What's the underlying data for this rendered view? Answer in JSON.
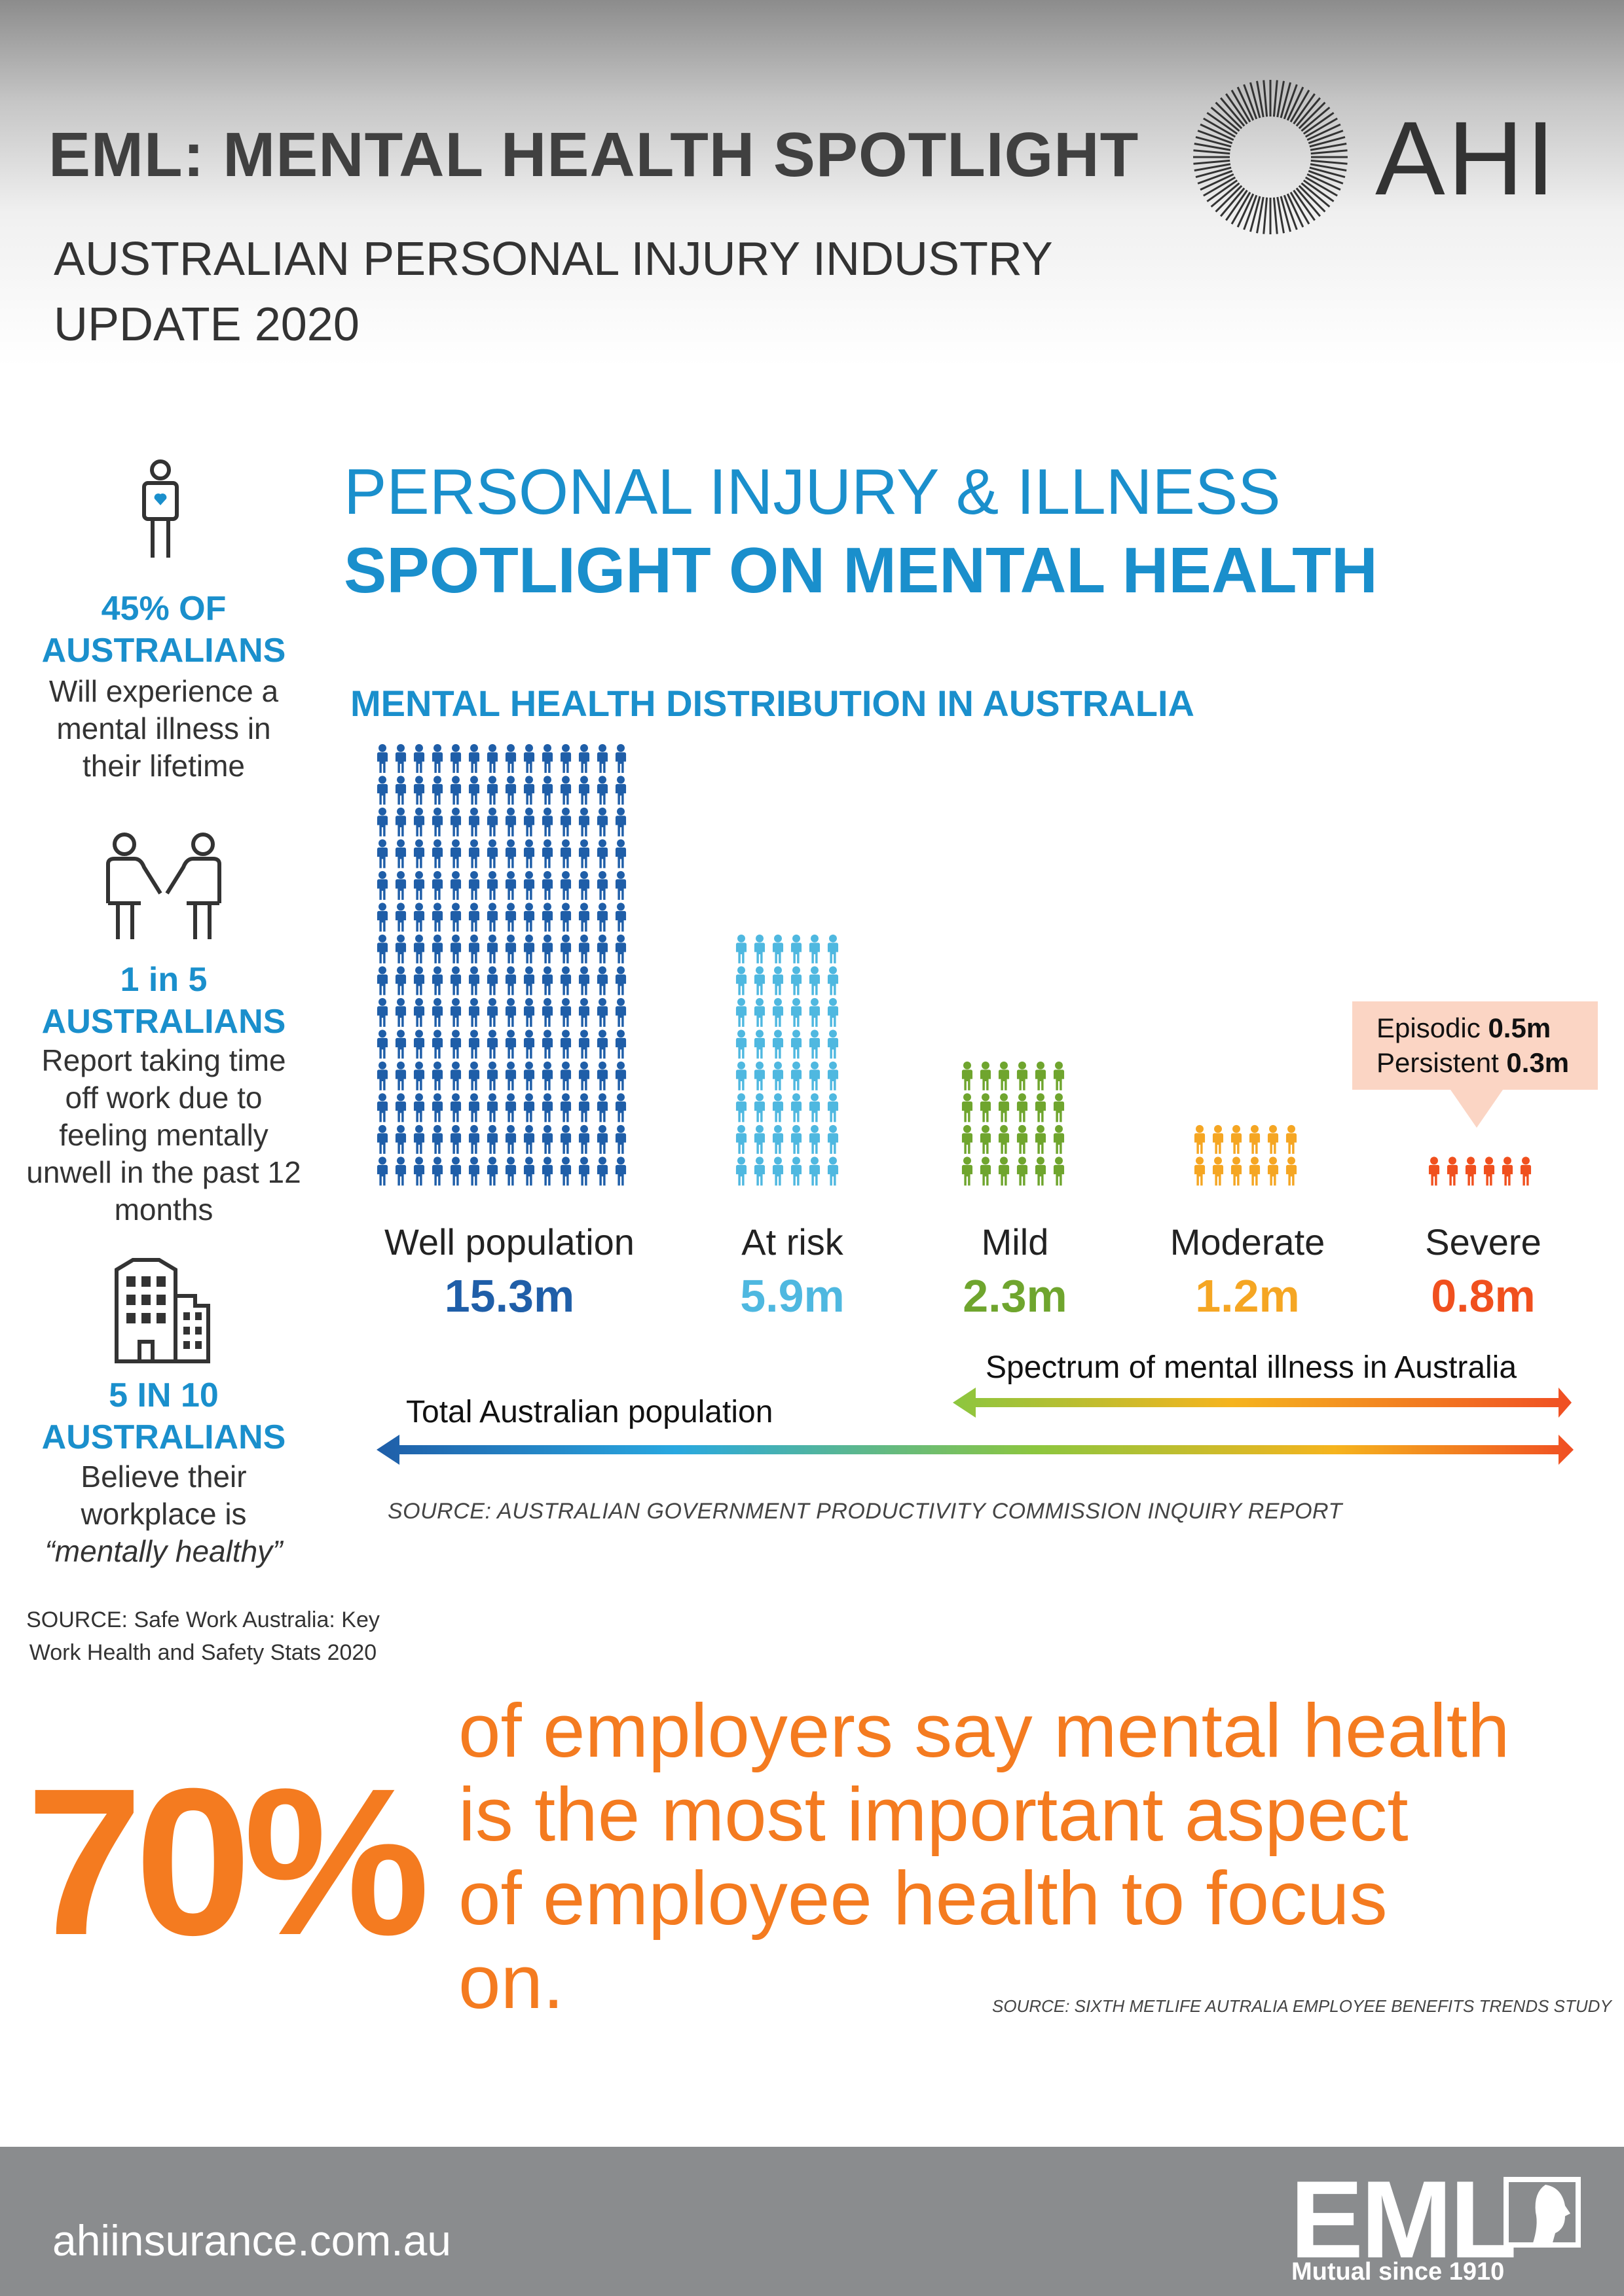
{
  "header": {
    "title": "EML: MENTAL HEALTH SPOTLIGHT",
    "subtitle_line1": "AUSTRALIAN PERSONAL INJURY INDUSTRY",
    "subtitle_line2": "UPDATE 2020",
    "logo_text": "AHI"
  },
  "left_stats": [
    {
      "icon": "person-heart-icon",
      "head_line1": "45% OF",
      "head_line2": "AUSTRALIANS",
      "body": [
        "Will experience a",
        "mental illness in",
        "their lifetime"
      ]
    },
    {
      "icon": "two-people-handshake-icon",
      "head_line1": "1 in 5",
      "head_line2": "AUSTRALIANS",
      "body": [
        "Report taking time",
        "off work due to",
        "feeling mentally",
        "unwell in the past 12",
        "months"
      ]
    },
    {
      "icon": "office-buildings-icon",
      "head_line1": "5 IN 10",
      "head_line2": "AUSTRALIANS",
      "body": [
        "Believe their",
        "workplace is",
        "“mentally healthy”"
      ]
    }
  ],
  "left_source": [
    "SOURCE: Safe Work Australia: Key",
    "Work Health and Safety Stats 2020"
  ],
  "section": {
    "line1": "PERSONAL INJURY & ILLNESS",
    "line2": "SPOTLIGHT ON MENTAL HEALTH",
    "chart_title": "MENTAL HEALTH DISTRIBUTION IN AUSTRALIA"
  },
  "chart_data": {
    "type": "bar",
    "title": "MENTAL HEALTH DISTRIBUTION IN AUSTRALIA",
    "categories": [
      "Well population",
      "At risk",
      "Mild",
      "Moderate",
      "Severe"
    ],
    "value_labels": [
      "15.3m",
      "5.9m",
      "2.3m",
      "1.2m",
      "0.8m"
    ],
    "values": [
      15.3,
      5.9,
      2.3,
      1.2,
      0.8
    ],
    "unit": "m",
    "colors": [
      "#1f5ea8",
      "#4fb8e0",
      "#6fa52e",
      "#f5a623",
      "#f0501e"
    ],
    "icon_rows": [
      14,
      8,
      4,
      2,
      1
    ],
    "icon_cols": [
      14,
      6,
      6,
      6,
      6
    ],
    "callout": {
      "line1_label": "Episodic",
      "line1_value": "0.5m",
      "line2_label": "Persistent",
      "line2_value": "0.3m"
    },
    "spectrum_label": "Spectrum of mental illness in Australia",
    "total_label": "Total Australian population",
    "source": "SOURCE: AUSTRALIAN GOVERNMENT PRODUCTIVITY COMMISSION INQUIRY REPORT"
  },
  "big_stat": {
    "percent": "70%",
    "text_lines": [
      "of employers say mental health",
      "is the most important aspect",
      "of employee health to focus",
      "on."
    ],
    "source": "SOURCE: SIXTH METLIFE AUTRALIA EMPLOYEE BENEFITS TRENDS STUDY",
    "color": "#f47b20"
  },
  "footer": {
    "url": "ahiinsurance.com.au",
    "logo_text": "EML",
    "tagline": "Mutual since 1910"
  }
}
